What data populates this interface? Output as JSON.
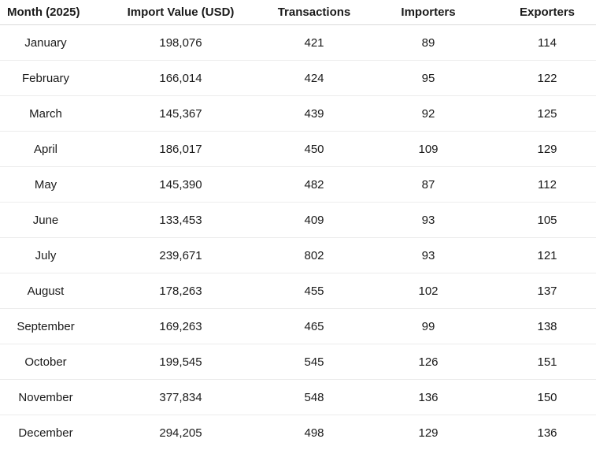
{
  "table": {
    "headers": [
      "Month (2025)",
      "Import Value (USD)",
      "Transactions",
      "Importers",
      "Exporters"
    ],
    "rows": [
      [
        "January",
        "198,076",
        "421",
        "89",
        "114"
      ],
      [
        "February",
        "166,014",
        "424",
        "95",
        "122"
      ],
      [
        "March",
        "145,367",
        "439",
        "92",
        "125"
      ],
      [
        "April",
        "186,017",
        "450",
        "109",
        "129"
      ],
      [
        "May",
        "145,390",
        "482",
        "87",
        "112"
      ],
      [
        "June",
        "133,453",
        "409",
        "93",
        "105"
      ],
      [
        "July",
        "239,671",
        "802",
        "93",
        "121"
      ],
      [
        "August",
        "178,263",
        "455",
        "102",
        "137"
      ],
      [
        "September",
        "169,263",
        "465",
        "99",
        "138"
      ],
      [
        "October",
        "199,545",
        "545",
        "126",
        "151"
      ],
      [
        "November",
        "377,834",
        "548",
        "136",
        "150"
      ],
      [
        "December",
        "294,205",
        "498",
        "129",
        "136"
      ]
    ]
  }
}
